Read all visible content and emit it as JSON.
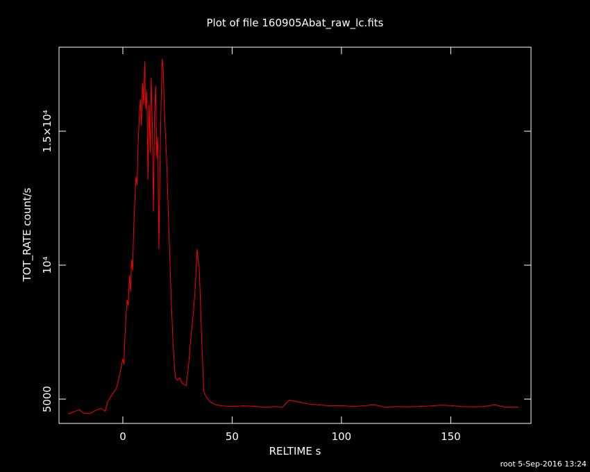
{
  "chart_data": {
    "type": "line",
    "title": "Plot of file 160905Abat_raw_lc.fits",
    "x_label": "RELTIME  s",
    "y_label": "TOT_RATE  count/s",
    "footer": "root  5-Sep-2016 13:24",
    "xlim": [
      -29.2,
      186.7
    ],
    "ylim": [
      4093,
      18135
    ],
    "xticks": [
      0,
      50,
      100,
      150
    ],
    "yticks": [
      5000,
      {
        "value": 10000,
        "label": "10⁴"
      },
      {
        "value": 15000,
        "label": "1.5×10⁴"
      }
    ],
    "x": [
      -25,
      -20,
      -18,
      -15,
      -12,
      -10,
      -8,
      -7,
      -5,
      -3,
      -2,
      -1,
      0,
      0.5,
      1,
      1.5,
      2,
      2.5,
      3,
      3.5,
      4,
      4.5,
      5,
      5.5,
      6,
      6.5,
      7,
      7.5,
      8,
      8.5,
      9,
      9.5,
      10,
      10.5,
      11,
      11.5,
      12,
      12.5,
      13,
      13.5,
      14,
      14.5,
      15,
      15.5,
      16,
      16.5,
      17,
      17.5,
      18,
      18.5,
      19,
      20,
      21,
      22,
      23,
      24,
      25,
      26,
      27,
      28,
      29,
      30,
      31,
      32,
      33,
      34,
      35,
      36,
      37,
      38,
      40,
      42,
      45,
      50,
      55,
      60,
      65,
      70,
      73,
      76,
      80,
      85,
      90,
      95,
      100,
      105,
      110,
      115,
      120,
      125,
      130,
      135,
      140,
      145,
      150,
      155,
      160,
      165,
      170,
      175,
      180,
      181
    ],
    "series": [
      {
        "name": "TOT_RATE",
        "color": "#ff0000",
        "values": [
          4450,
          4600,
          4480,
          4460,
          4600,
          4650,
          4550,
          4900,
          5150,
          5400,
          5700,
          6100,
          6500,
          6300,
          7400,
          8200,
          8700,
          8500,
          9600,
          9000,
          10200,
          9800,
          11500,
          12400,
          13300,
          13000,
          14500,
          15500,
          16200,
          15200,
          16800,
          16000,
          17600,
          15800,
          16500,
          13200,
          16000,
          14200,
          17000,
          15200,
          12000,
          15600,
          16700,
          14000,
          14800,
          10600,
          13800,
          16000,
          17700,
          17300,
          15800,
          14000,
          11500,
          9000,
          7000,
          5800,
          5700,
          5800,
          5600,
          5550,
          5500,
          6200,
          7200,
          8000,
          9000,
          10600,
          9800,
          7400,
          5300,
          5100,
          4900,
          4800,
          4750,
          4720,
          4750,
          4730,
          4700,
          4720,
          4700,
          4960,
          4900,
          4820,
          4780,
          4750,
          4760,
          4720,
          4750,
          4790,
          4700,
          4720,
          4710,
          4720,
          4740,
          4770,
          4760,
          4720,
          4710,
          4720,
          4790,
          4700,
          4710,
          4690
        ]
      }
    ]
  }
}
